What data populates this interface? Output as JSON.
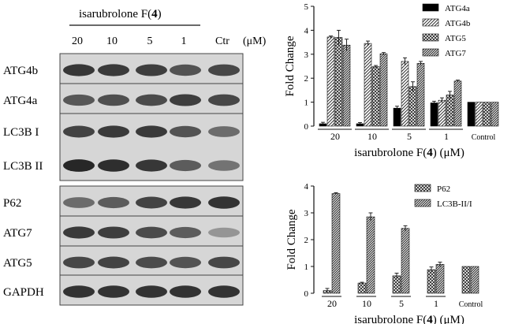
{
  "blot": {
    "header": {
      "prefix": "isarubrolone F(",
      "bold": "4",
      "suffix": ")"
    },
    "lanes": [
      "20",
      "10",
      "5",
      "1",
      "Ctr"
    ],
    "unit": "(μM)",
    "rows": [
      {
        "label": "ATG4b",
        "intensity": [
          0.88,
          0.86,
          0.84,
          0.74,
          0.8
        ]
      },
      {
        "label": "ATG4a",
        "intensity": [
          0.72,
          0.76,
          0.78,
          0.84,
          0.8
        ]
      },
      {
        "label": "LC3B I",
        "intensity": [
          0.82,
          0.86,
          0.86,
          0.74,
          0.62
        ]
      },
      {
        "label": "LC3B II",
        "intensity": [
          0.96,
          0.92,
          0.88,
          0.7,
          0.58
        ]
      },
      {
        "label": "P62",
        "intensity": [
          0.62,
          0.7,
          0.82,
          0.88,
          0.9
        ]
      },
      {
        "label": "ATG7",
        "intensity": [
          0.86,
          0.84,
          0.78,
          0.7,
          0.42
        ]
      },
      {
        "label": "ATG5",
        "intensity": [
          0.8,
          0.82,
          0.78,
          0.74,
          0.8
        ]
      },
      {
        "label": "GAPDH",
        "intensity": [
          0.9,
          0.9,
          0.9,
          0.9,
          0.9
        ]
      }
    ]
  },
  "chart_data": [
    {
      "type": "bar",
      "categories": [
        "20",
        "10",
        "5",
        "1",
        "Control"
      ],
      "xlabel": {
        "prefix": "isarubrolone F(",
        "bold": "4",
        "suffix": ") (μM)"
      },
      "ylabel": "Fold Change",
      "ylim": [
        0,
        5
      ],
      "yticks": [
        0,
        1,
        2,
        3,
        4,
        5
      ],
      "legend_position": "top-right",
      "series": [
        {
          "name": "ATG4a",
          "pattern": "solid",
          "values": [
            0.1,
            0.1,
            0.75,
            0.97,
            1.0
          ],
          "errors": [
            0.06,
            0.05,
            0.08,
            0.07,
            0
          ]
        },
        {
          "name": "ATG4b",
          "pattern": "hatch",
          "values": [
            3.72,
            3.45,
            2.7,
            1.08,
            1.0
          ],
          "errors": [
            0.04,
            0.1,
            0.15,
            0.1,
            0
          ]
        },
        {
          "name": "ATG5",
          "pattern": "cross",
          "values": [
            3.7,
            2.48,
            1.65,
            1.3,
            1.0
          ],
          "errors": [
            0.3,
            0.05,
            0.2,
            0.15,
            0
          ]
        },
        {
          "name": "ATG7",
          "pattern": "dense",
          "values": [
            3.38,
            3.02,
            2.62,
            1.88,
            1.0
          ],
          "errors": [
            0.25,
            0.05,
            0.08,
            0.04,
            0
          ]
        }
      ]
    },
    {
      "type": "bar",
      "categories": [
        "20",
        "10",
        "5",
        "1",
        "Control"
      ],
      "xlabel": {
        "prefix": "isarubrolone F(",
        "bold": "4",
        "suffix": ") (μM)"
      },
      "ylabel": "Fold Change",
      "ylim": [
        0,
        4
      ],
      "yticks": [
        0,
        1,
        2,
        3,
        4
      ],
      "legend_position": "top-right",
      "series": [
        {
          "name": "P62",
          "pattern": "cross",
          "values": [
            0.1,
            0.38,
            0.65,
            0.88,
            1.0
          ],
          "errors": [
            0.08,
            0.03,
            0.1,
            0.1,
            0
          ]
        },
        {
          "name": "LC3B-II/I",
          "pattern": "dense",
          "values": [
            3.72,
            2.85,
            2.42,
            1.08,
            1.0
          ],
          "errors": [
            0.03,
            0.15,
            0.1,
            0.08,
            0
          ]
        }
      ]
    }
  ]
}
